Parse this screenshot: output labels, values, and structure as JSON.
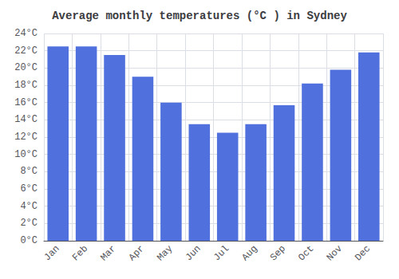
{
  "chart_data": {
    "type": "bar",
    "title": "Average monthly temperatures (°C ) in Sydney",
    "categories": [
      "Jan",
      "Feb",
      "Mar",
      "Apr",
      "May",
      "Jun",
      "Jul",
      "Aug",
      "Sep",
      "Oct",
      "Nov",
      "Dec"
    ],
    "values": [
      22.5,
      22.5,
      21.5,
      19.0,
      16.0,
      13.5,
      12.5,
      13.5,
      15.7,
      18.2,
      19.8,
      21.8
    ],
    "ylim": [
      0,
      24
    ],
    "yticks": [
      {
        "value": 0,
        "label": "0°C"
      },
      {
        "value": 2,
        "label": "2°C"
      },
      {
        "value": 4,
        "label": "4°C"
      },
      {
        "value": 6,
        "label": "6°C"
      },
      {
        "value": 8,
        "label": "8°C"
      },
      {
        "value": 10,
        "label": "10°C"
      },
      {
        "value": 12,
        "label": "12°C"
      },
      {
        "value": 14,
        "label": "14°C"
      },
      {
        "value": 16,
        "label": "16°C"
      },
      {
        "value": 18,
        "label": "18°C"
      },
      {
        "value": 20,
        "label": "20°C"
      },
      {
        "value": 22,
        "label": "22°C"
      },
      {
        "value": 24,
        "label": "24°C"
      }
    ],
    "grid": true
  }
}
